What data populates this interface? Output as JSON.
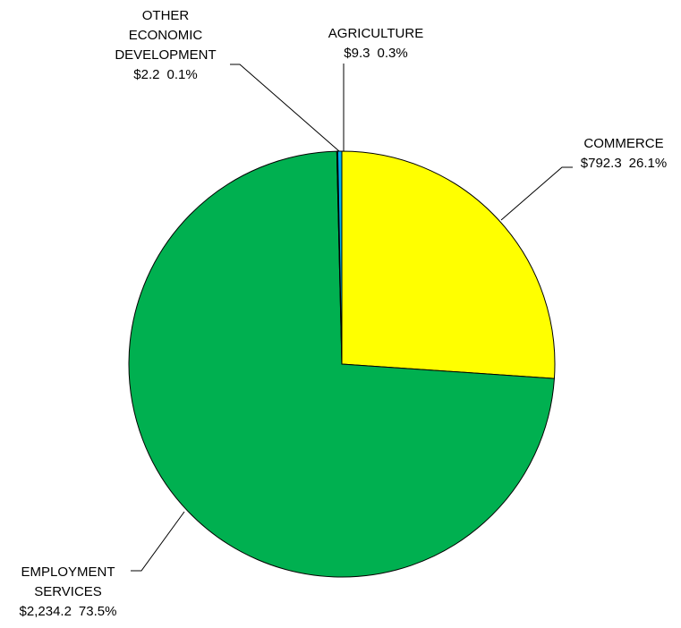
{
  "chart_data": {
    "type": "pie",
    "title": "",
    "start_angle_deg": 0,
    "direction": "clockwise",
    "slices": [
      {
        "name": "COMMERCE",
        "label_lines": [
          "COMMERCE"
        ],
        "value": 792.3,
        "value_label": "$792.3",
        "percent_label": "26.1%",
        "color": "#ffff00"
      },
      {
        "name": "EMPLOYMENT SERVICES",
        "label_lines": [
          "EMPLOYMENT",
          "SERVICES"
        ],
        "value": 2234.2,
        "value_label": "$2,234.2",
        "percent_label": "73.5%",
        "color": "#00b050"
      },
      {
        "name": "OTHER ECONOMIC DEVELOPMENT",
        "label_lines": [
          "OTHER",
          "ECONOMIC",
          "DEVELOPMENT"
        ],
        "value": 2.2,
        "value_label": "$2.2",
        "percent_label": "0.1%",
        "color": "#002060"
      },
      {
        "name": "AGRICULTURE",
        "label_lines": [
          "AGRICULTURE"
        ],
        "value": 9.3,
        "value_label": "$9.3",
        "percent_label": "0.3%",
        "color": "#00b0f0"
      }
    ],
    "legend": "none"
  }
}
